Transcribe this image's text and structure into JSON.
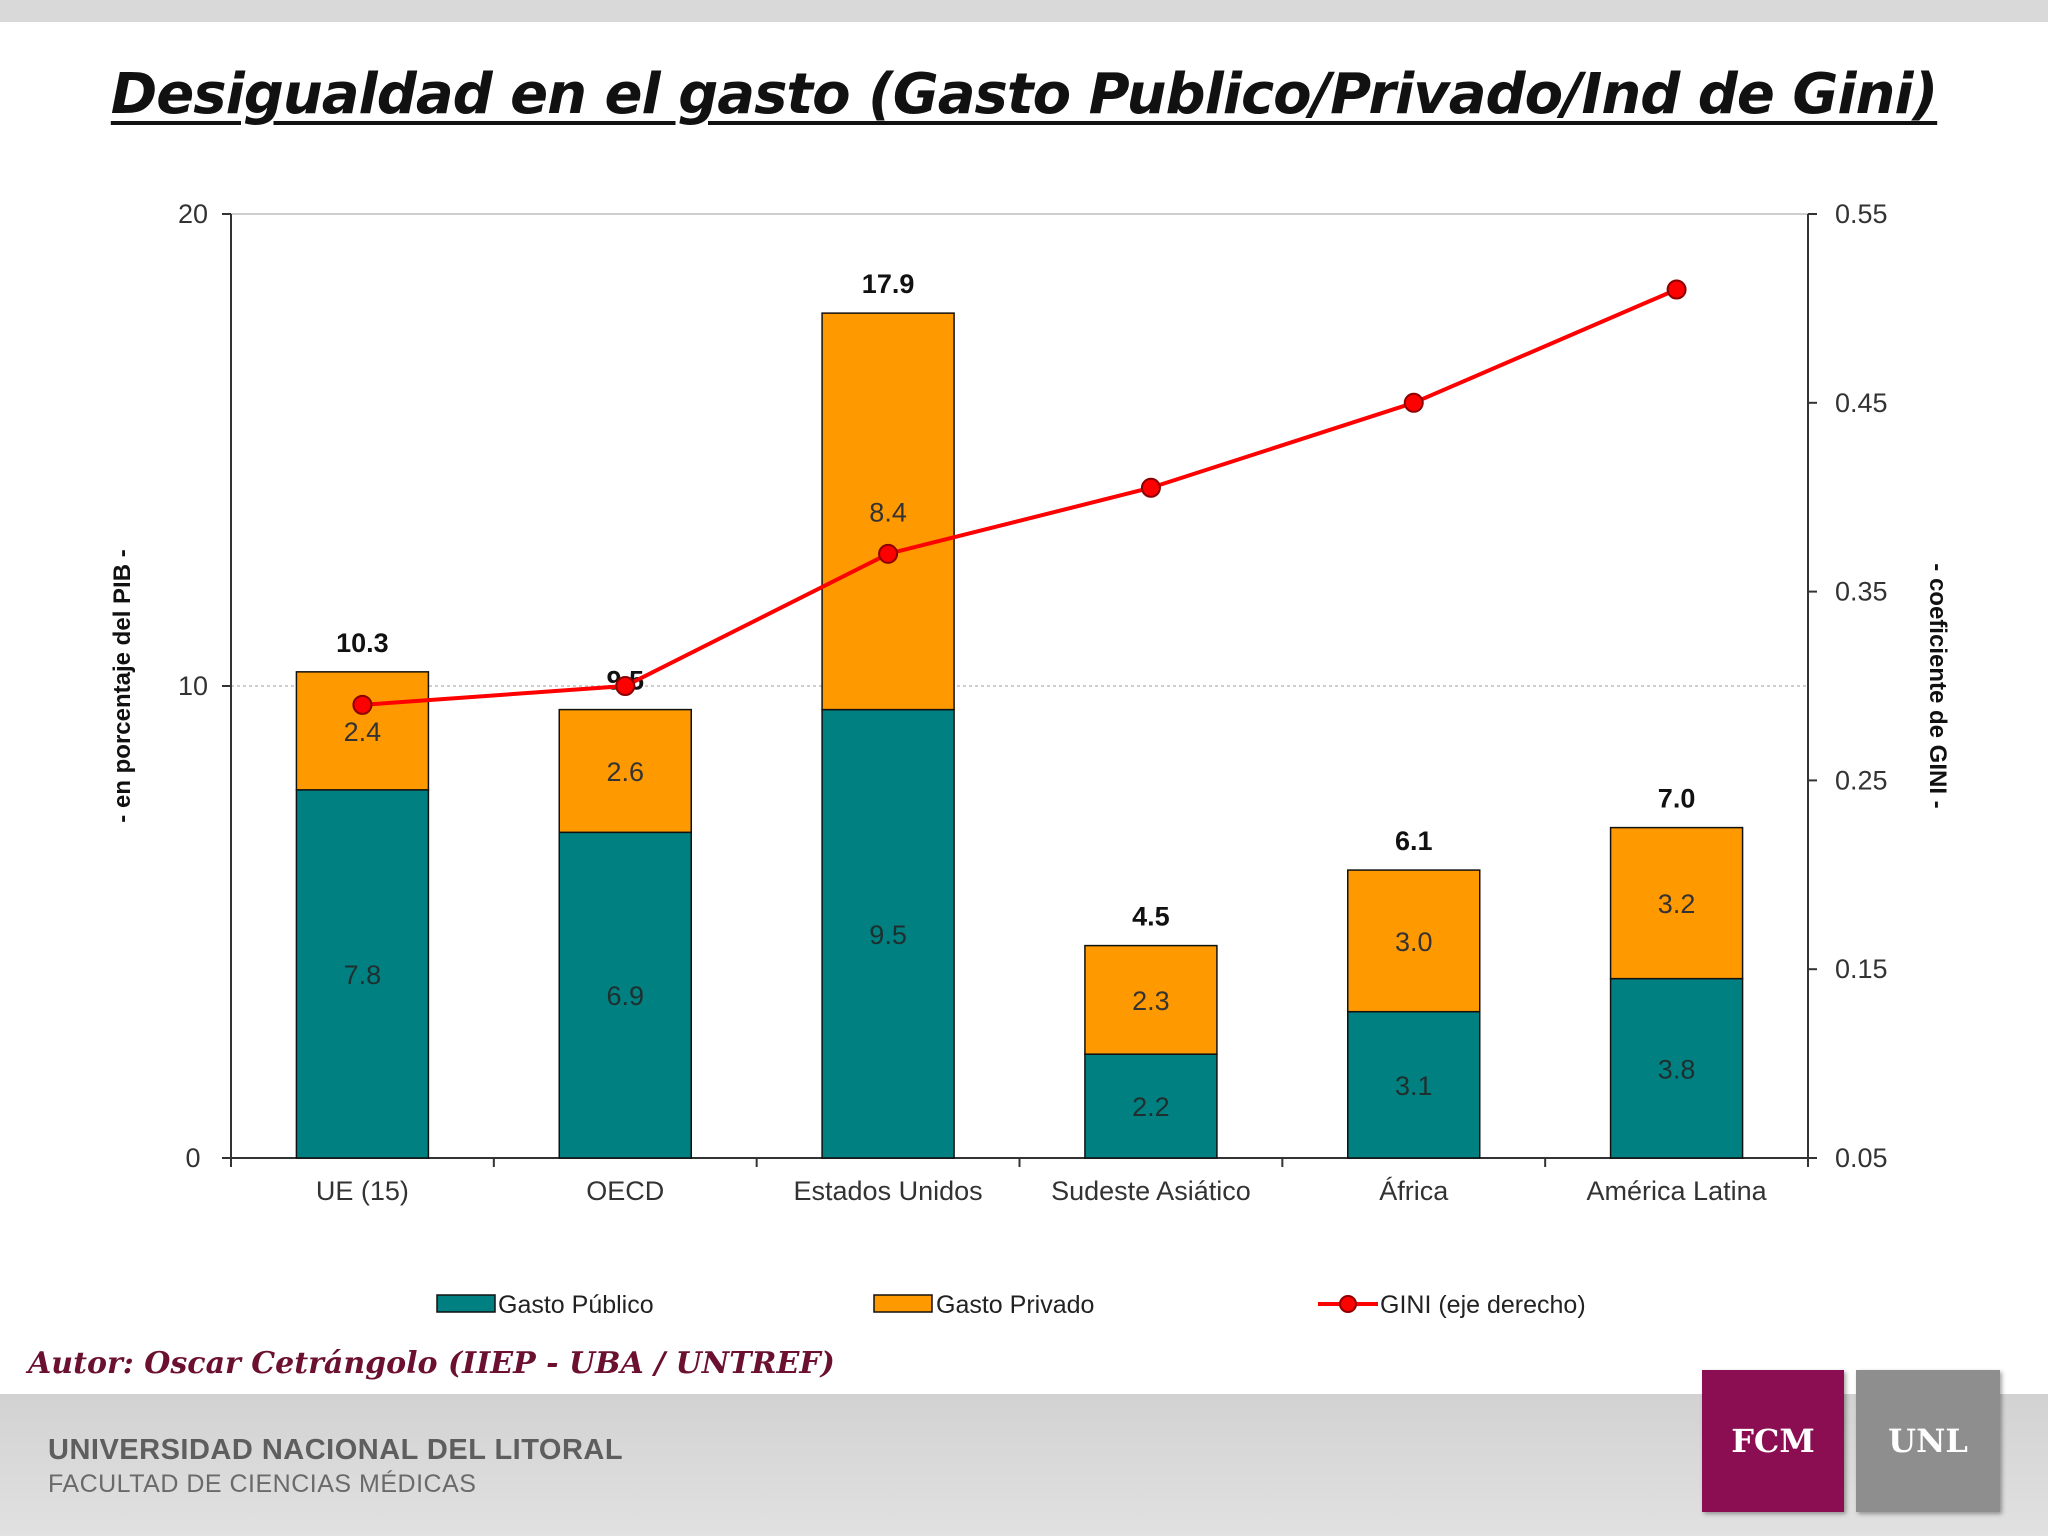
{
  "slide": {
    "title": "Desigualdad en el gasto (Gasto Publico/Privado/Ind de Gini)",
    "author": "Autor: Oscar Cetrángolo (IIEP - UBA / UNTREF)",
    "footer_university": "UNIVERSIDAD NACIONAL DEL LITORAL",
    "footer_faculty": "FACULTAD DE CIENCIAS MÉDICAS",
    "logo_left": "FCM",
    "logo_right": "UNL"
  },
  "colors": {
    "publico": "#008080",
    "privado": "#ff9900",
    "gini": "#ff0000",
    "logo_fcm": "#8c0e52",
    "logo_unl": "#8e8e8e"
  },
  "chart_data": {
    "type": "bar",
    "stacked": true,
    "categories": [
      "UE (15)",
      "OECD",
      "Estados Unidos",
      "Sudeste Asiático",
      "África",
      "América Latina"
    ],
    "series": [
      {
        "name": "Gasto Público",
        "values": [
          7.8,
          6.9,
          9.5,
          2.2,
          3.1,
          3.8
        ],
        "labels": [
          "7.8",
          "6.9",
          "9.5",
          "2.2",
          "3.1",
          "3.8"
        ]
      },
      {
        "name": "Gasto Privado",
        "values": [
          2.4,
          2.6,
          8.4,
          2.3,
          3.0,
          3.2
        ],
        "labels": [
          "2.4",
          "2.6",
          "8.4",
          "2.3",
          "3.0",
          "3.2"
        ]
      }
    ],
    "totals": [
      10.3,
      9.5,
      17.9,
      4.5,
      6.1,
      7.0
    ],
    "total_labels": [
      "10.3",
      "9.5",
      "17.9",
      "4.5",
      "6.1",
      "7.0"
    ],
    "line_series": {
      "name": "GINI (eje derecho)",
      "axis": "right",
      "values": [
        0.29,
        0.3,
        0.37,
        0.405,
        0.45,
        0.51
      ]
    },
    "ylabel": "- en porcentaje del PIB -",
    "y2label": "- coeficiente de GINI -",
    "ylim": [
      0,
      20
    ],
    "y2lim": [
      0.05,
      0.55
    ],
    "yticks": [
      "0",
      "10",
      "20"
    ],
    "y2ticks": [
      "0.05",
      "0.15",
      "0.25",
      "0.35",
      "0.45",
      "0.55"
    ],
    "grid": true,
    "legend": "bottom"
  }
}
